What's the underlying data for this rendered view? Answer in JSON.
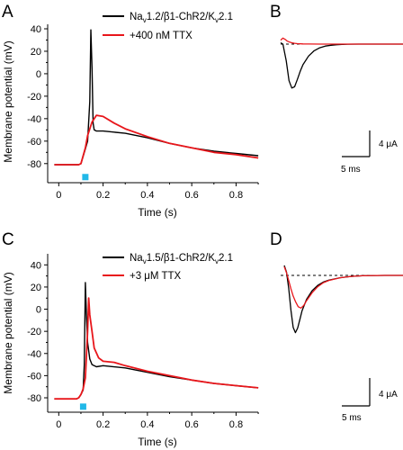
{
  "chart_data": [
    {
      "id": "A",
      "type": "line",
      "panel_label": "A",
      "xlabel": "Time (s)",
      "ylabel": "Membrane potential (mV)",
      "xlim": [
        -0.05,
        0.92
      ],
      "ylim": [
        -97,
        44
      ],
      "x_ticks": [
        0,
        0.2,
        0.4,
        0.6,
        0.8
      ],
      "x_tick_labels": [
        "0",
        "0.2",
        "0.4",
        "0.6",
        "0.8"
      ],
      "y_ticks": [
        40,
        20,
        0,
        -20,
        -40,
        -60,
        -80
      ],
      "y_tick_labels": [
        "40",
        "20",
        "0",
        "-20",
        "-40",
        "-60",
        "-80"
      ],
      "legend": [
        {
          "base": "Na",
          "sub": "v",
          "rest": "1.2/β1-ChR2/K",
          "sub2": "v",
          "rest2": "2.1",
          "color": "#000000"
        },
        {
          "text": "+400 nM TTX",
          "color": "#e8161b"
        }
      ],
      "stimulus": {
        "x": 0.12,
        "y": -92,
        "color": "#22b8e8"
      },
      "series": [
        {
          "color": "#000000",
          "x": [
            -0.02,
            0.09,
            0.1,
            0.12,
            0.13,
            0.14,
            0.145,
            0.15,
            0.155,
            0.16,
            0.17,
            0.2,
            0.3,
            0.4,
            0.5,
            0.6,
            0.7,
            0.8,
            0.9
          ],
          "y": [
            -81,
            -81,
            -80,
            -67,
            -60,
            -25,
            39,
            5,
            -44,
            -50,
            -51,
            -51,
            -53,
            -57,
            -62,
            -66,
            -69,
            -71,
            -73
          ]
        },
        {
          "color": "#e8161b",
          "x": [
            -0.02,
            0.09,
            0.1,
            0.12,
            0.13,
            0.15,
            0.17,
            0.2,
            0.25,
            0.3,
            0.4,
            0.5,
            0.6,
            0.7,
            0.8,
            0.9
          ],
          "y": [
            -81,
            -81,
            -80,
            -66,
            -55,
            -43,
            -37,
            -38,
            -44,
            -49,
            -56,
            -62,
            -66,
            -70,
            -72,
            -75
          ]
        }
      ]
    },
    {
      "id": "B",
      "type": "line",
      "panel_label": "B",
      "scalebar": {
        "current": "4 μA",
        "time": "5 ms"
      },
      "series": [
        {
          "color": "#000000",
          "x": [
            0,
            0.4,
            1,
            1.5,
            2,
            2.5,
            3,
            3.5,
            4,
            5,
            6,
            7,
            8,
            9,
            10,
            11,
            12,
            14,
            16,
            20,
            24
          ],
          "y": [
            0.2,
            0.0,
            -2.5,
            -5.5,
            -6.6,
            -6.4,
            -5.3,
            -4.1,
            -3.1,
            -1.8,
            -1.0,
            -0.55,
            -0.3,
            -0.17,
            -0.1,
            -0.05,
            -0.02,
            0.0,
            0.0,
            0.0,
            0.0
          ]
        },
        {
          "color": "#e8161b",
          "x": [
            0,
            0.4,
            0.8,
            1.2,
            1.6,
            2,
            2.5,
            3,
            4,
            5,
            7,
            10,
            24
          ],
          "y": [
            0.6,
            0.9,
            0.7,
            0.45,
            0.3,
            0.2,
            0.12,
            0.07,
            0.03,
            0.01,
            0.0,
            0.0,
            0.0
          ]
        }
      ]
    },
    {
      "id": "C",
      "type": "line",
      "panel_label": "C",
      "xlabel": "Time (s)",
      "ylabel": "Membrane potential (mV)",
      "xlim": [
        -0.05,
        0.92
      ],
      "ylim": [
        -93,
        50
      ],
      "x_ticks": [
        0,
        0.2,
        0.4,
        0.6,
        0.8
      ],
      "x_tick_labels": [
        "0",
        "0.2",
        "0.4",
        "0.6",
        "0.8"
      ],
      "y_ticks": [
        40,
        20,
        0,
        -20,
        -40,
        -60,
        -80
      ],
      "y_tick_labels": [
        "40",
        "20",
        "0",
        "-20",
        "-40",
        "-60",
        "-80"
      ],
      "legend": [
        {
          "base": "Na",
          "sub": "v",
          "rest": "1.5/β1-ChR2/K",
          "sub2": "v",
          "rest2": "2.1",
          "color": "#000000"
        },
        {
          "text": "+3 μM TTX",
          "color": "#e8161b"
        }
      ],
      "stimulus": {
        "x": 0.11,
        "y": -88,
        "color": "#22b8e8"
      },
      "series": [
        {
          "color": "#000000",
          "x": [
            -0.02,
            0.08,
            0.09,
            0.1,
            0.11,
            0.115,
            0.12,
            0.125,
            0.13,
            0.14,
            0.15,
            0.17,
            0.2,
            0.3,
            0.4,
            0.5,
            0.6,
            0.7,
            0.8,
            0.9
          ],
          "y": [
            -81,
            -81,
            -80,
            -77,
            -73,
            -50,
            24,
            -5,
            -30,
            -45,
            -50,
            -52,
            -51,
            -53,
            -57,
            -61,
            -64,
            -67,
            -69,
            -71
          ]
        },
        {
          "color": "#e8161b",
          "x": [
            -0.02,
            0.08,
            0.09,
            0.1,
            0.11,
            0.12,
            0.13,
            0.135,
            0.14,
            0.15,
            0.16,
            0.18,
            0.2,
            0.25,
            0.3,
            0.4,
            0.5,
            0.6,
            0.7,
            0.8,
            0.9
          ],
          "y": [
            -81,
            -81,
            -80,
            -77,
            -72,
            -62,
            -20,
            10,
            -5,
            -20,
            -35,
            -44,
            -47,
            -48,
            -51,
            -56,
            -60,
            -64,
            -67,
            -69,
            -71
          ]
        }
      ]
    },
    {
      "id": "D",
      "type": "line",
      "panel_label": "D",
      "scalebar": {
        "current": "4 μA",
        "time": "5 ms"
      },
      "series": [
        {
          "color": "#000000",
          "x": [
            0,
            0.4,
            0.8,
            1.2,
            1.6,
            2,
            2.4,
            2.8,
            3.2,
            4,
            5,
            6,
            7,
            8,
            10,
            12,
            14,
            18,
            24
          ],
          "y": [
            1.5,
            0.5,
            -2.0,
            -5.2,
            -7.8,
            -8.6,
            -7.9,
            -6.6,
            -5.3,
            -3.6,
            -2.3,
            -1.5,
            -1.0,
            -0.7,
            -0.35,
            -0.15,
            -0.05,
            0.0,
            0.0
          ]
        },
        {
          "color": "#e8161b",
          "x": [
            0,
            0.4,
            0.8,
            1.2,
            1.6,
            2,
            2.5,
            3,
            3.5,
            4,
            5,
            6,
            7,
            8,
            10,
            12,
            14,
            18,
            24
          ],
          "y": [
            1.3,
            0.4,
            -0.8,
            -2.0,
            -3.1,
            -3.9,
            -4.7,
            -4.9,
            -4.5,
            -3.8,
            -2.6,
            -1.7,
            -1.1,
            -0.75,
            -0.35,
            -0.15,
            -0.05,
            0.0,
            0.0
          ]
        }
      ]
    }
  ]
}
